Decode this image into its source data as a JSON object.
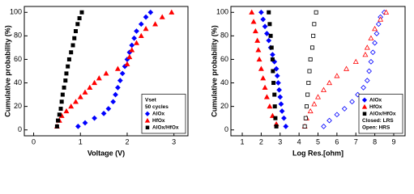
{
  "chart_data": [
    {
      "type": "scatter",
      "x_label": "Voltage (V)",
      "y_label": "Cumulative probability (%)",
      "xlim": [
        -0.2,
        3.3
      ],
      "xticks": [
        0,
        1,
        2,
        3
      ],
      "ylim": [
        -5,
        105
      ],
      "yticks": [
        0,
        20,
        40,
        60,
        80,
        100
      ],
      "legend": "lower right",
      "legend_title": "Vset",
      "legend_subtitle": "50 cycles",
      "series": [
        {
          "name": "AlOx",
          "color": "#0000ff",
          "marker": "diamond",
          "x": [
            0.95,
            1.1,
            1.3,
            1.5,
            1.6,
            1.7,
            1.75,
            1.8,
            1.85,
            1.9,
            1.95,
            2.0,
            2.05,
            2.1,
            2.15,
            2.2,
            2.3,
            2.4,
            2.5
          ],
          "y": [
            3,
            6,
            10,
            14,
            18,
            24,
            30,
            36,
            42,
            48,
            54,
            60,
            66,
            72,
            78,
            84,
            90,
            96,
            100
          ]
        },
        {
          "name": "HfOx",
          "color": "#ff0000",
          "marker": "triangle",
          "x": [
            0.5,
            0.55,
            0.6,
            0.7,
            0.8,
            0.9,
            1.0,
            1.1,
            1.2,
            1.3,
            1.4,
            1.55,
            1.8,
            2.0,
            2.05,
            2.1,
            2.2,
            2.3,
            2.4,
            2.6,
            2.75,
            2.95
          ],
          "y": [
            3,
            8,
            12,
            16,
            20,
            24,
            28,
            32,
            36,
            40,
            44,
            48,
            52,
            56,
            62,
            68,
            74,
            80,
            86,
            90,
            96,
            100
          ]
        },
        {
          "name": "AlOx/HfOx",
          "color": "#000000",
          "marker": "square",
          "x": [
            0.5,
            0.52,
            0.55,
            0.58,
            0.6,
            0.62,
            0.65,
            0.68,
            0.7,
            0.73,
            0.76,
            0.8,
            0.84,
            0.87,
            0.9,
            0.94,
            0.98,
            1.03
          ],
          "y": [
            3,
            8,
            13,
            18,
            24,
            30,
            36,
            42,
            48,
            54,
            60,
            66,
            72,
            78,
            84,
            90,
            95,
            100
          ]
        }
      ]
    },
    {
      "type": "scatter",
      "x_label": "Log Res.[ohm]",
      "y_label": "Cumulative probability (%)",
      "xlim": [
        0.4,
        9.6
      ],
      "xticks": [
        1,
        2,
        3,
        4,
        5,
        6,
        7,
        8,
        9
      ],
      "ylim": [
        -5,
        105
      ],
      "yticks": [
        0,
        20,
        40,
        60,
        80,
        100
      ],
      "legend": "lower right",
      "legend_notes": [
        "Closed: LRS",
        "Open: HRS"
      ],
      "series": [
        {
          "name": "AlOx",
          "color": "#0000ff",
          "marker": "diamond",
          "lrs": {
            "x": [
              2.0,
              2.1,
              2.2,
              2.3,
              2.4,
              2.5,
              2.6,
              2.7,
              2.8,
              2.85,
              2.9,
              2.95,
              3.0,
              3.05,
              3.1,
              3.2,
              3.3
            ],
            "y": [
              100,
              94,
              88,
              82,
              76,
              70,
              64,
              58,
              52,
              46,
              40,
              34,
              28,
              22,
              16,
              10,
              3
            ]
          },
          "hrs": {
            "x": [
              5.3,
              5.6,
              6.0,
              6.4,
              6.8,
              7.1,
              7.4,
              7.6,
              7.7,
              7.8,
              7.9,
              8.0,
              8.1,
              8.2,
              8.3,
              8.5
            ],
            "y": [
              3,
              8,
              13,
              18,
              24,
              30,
              36,
              42,
              50,
              58,
              66,
              74,
              82,
              90,
              96,
              100
            ]
          }
        },
        {
          "name": "HfOx",
          "color": "#ff0000",
          "marker": "triangle",
          "lrs": {
            "x": [
              1.5,
              1.6,
              1.7,
              1.8,
              1.85,
              1.9,
              2.0,
              2.1,
              2.2,
              2.3,
              2.45,
              2.6,
              2.8
            ],
            "y": [
              100,
              92,
              84,
              76,
              68,
              60,
              52,
              44,
              36,
              28,
              20,
              12,
              5
            ]
          },
          "hrs": {
            "x": [
              4.3,
              4.4,
              4.6,
              4.8,
              5.0,
              5.3,
              5.6,
              6.0,
              6.5,
              7.0,
              7.5,
              7.6,
              7.8,
              8.0,
              8.3,
              8.6
            ],
            "y": [
              3,
              10,
              16,
              22,
              28,
              34,
              40,
              46,
              52,
              58,
              64,
              70,
              78,
              86,
              94,
              100
            ]
          }
        },
        {
          "name": "AlOx/HfOx",
          "color": "#000000",
          "marker": "square",
          "lrs": {
            "x": [
              2.4,
              2.45,
              2.5,
              2.55,
              2.6,
              2.62,
              2.65,
              2.7,
              2.72,
              2.75,
              2.8
            ],
            "y": [
              100,
              90,
              80,
              70,
              60,
              50,
              40,
              30,
              20,
              10,
              3
            ]
          },
          "hrs": {
            "x": [
              4.3,
              4.35,
              4.4,
              4.45,
              4.5,
              4.55,
              4.6,
              4.7,
              4.75,
              4.8,
              4.9
            ],
            "y": [
              3,
              10,
              20,
              30,
              40,
              50,
              60,
              70,
              80,
              90,
              100
            ]
          }
        }
      ]
    }
  ]
}
